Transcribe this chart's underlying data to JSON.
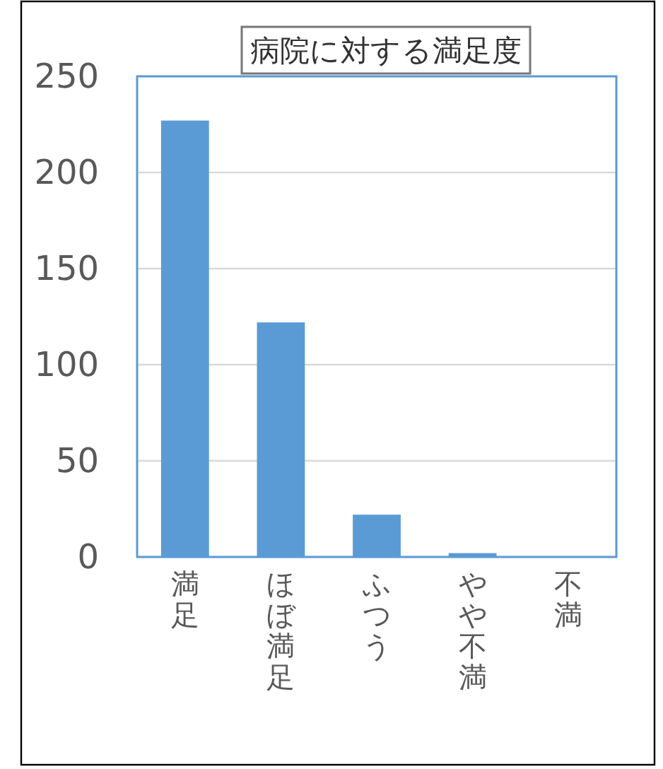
{
  "chart_data": {
    "type": "bar",
    "title": "病院に対する満足度",
    "categories": [
      "満足",
      "ほぼ満足",
      "ふつう",
      "やや不満",
      "不満"
    ],
    "values": [
      227,
      122,
      22,
      2,
      0
    ],
    "color": "#5b9bd5",
    "ylim": [
      0,
      250
    ],
    "yticks": [
      0,
      50,
      100,
      150,
      200,
      250
    ],
    "grid": "y"
  }
}
